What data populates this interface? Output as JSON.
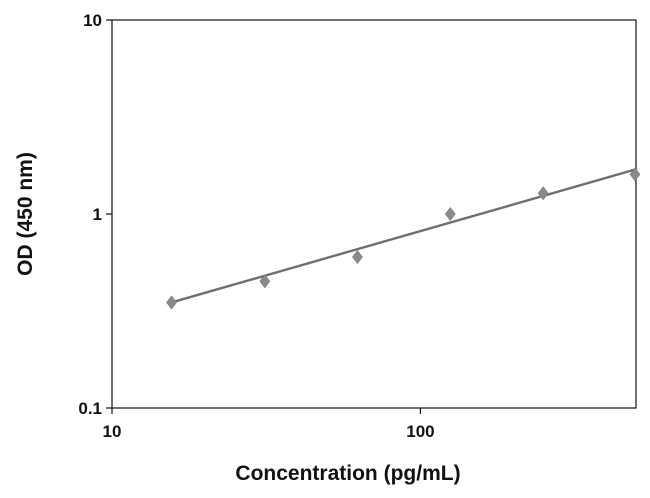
{
  "chart_data": {
    "type": "scatter",
    "title": "",
    "xlabel": "Concentration (pg/mL)",
    "ylabel": "OD (450 nm)",
    "x_scale": "log",
    "y_scale": "log",
    "xlim": [
      10,
      500
    ],
    "ylim": [
      0.1,
      10
    ],
    "x_ticks": [
      10,
      100
    ],
    "x_tick_labels": [
      "10",
      "100"
    ],
    "y_ticks": [
      0.1,
      1,
      10
    ],
    "y_tick_labels": [
      "0.1",
      "1",
      "10"
    ],
    "grid": false,
    "legend": false,
    "colors": {
      "marker": "#8a8a8a",
      "line": "#6f6f6f",
      "axis": "#111111"
    },
    "series": [
      {
        "x": [
          15.6,
          31.3,
          62.5,
          125,
          250,
          500
        ],
        "y": [
          0.35,
          0.45,
          0.6,
          1.0,
          1.28,
          1.6
        ]
      }
    ],
    "trendline": {
      "x": [
        15.6,
        500
      ],
      "y": [
        0.35,
        1.7
      ]
    }
  }
}
